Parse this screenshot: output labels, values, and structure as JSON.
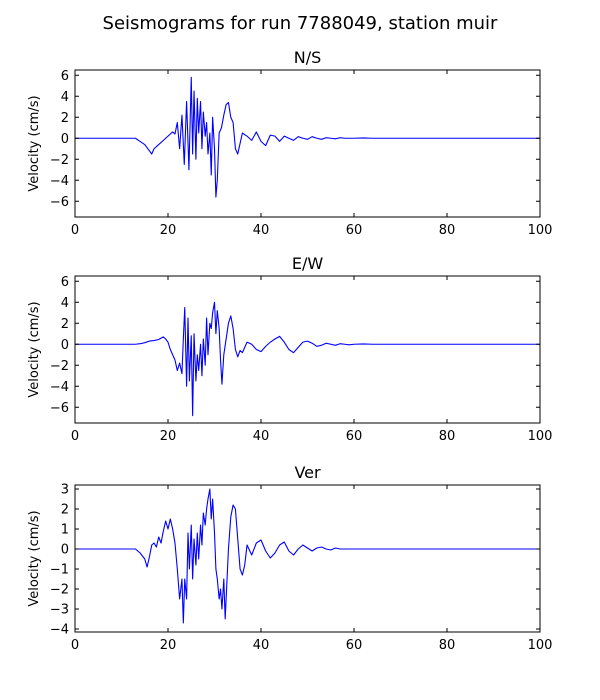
{
  "figure": {
    "title": "Seismograms for run 7788049, station muir",
    "line_color": "#0000ff"
  },
  "chart_data": [
    {
      "type": "line",
      "title": "N/S",
      "xlabel": "",
      "ylabel": "Velocity (cm/s)",
      "xlim": [
        0,
        100
      ],
      "ylim": [
        -7.5,
        6.5
      ],
      "xticks": [
        0,
        20,
        40,
        60,
        80,
        100
      ],
      "yticks": [
        -6,
        -4,
        -2,
        0,
        2,
        4,
        6
      ],
      "series": [
        {
          "x": [
            0,
            13,
            14,
            15,
            16,
            16.5,
            17,
            18,
            19,
            20,
            21,
            21.5,
            22,
            22.5,
            23,
            23.5,
            24,
            24.5,
            25,
            25.3,
            25.6,
            26,
            26.3,
            26.6,
            27,
            27.3,
            27.6,
            28,
            28.3,
            28.6,
            29,
            29.3,
            29.6,
            30,
            30.3,
            30.6,
            31,
            31.5,
            32,
            32.5,
            33,
            33.5,
            34,
            34.5,
            35,
            35.5,
            36,
            37,
            38,
            39,
            40,
            41,
            42,
            43,
            44,
            45,
            46,
            47,
            48,
            49,
            50,
            51,
            52,
            53,
            54,
            55,
            56,
            57,
            58,
            60,
            62,
            64,
            66,
            68,
            70,
            100
          ],
          "y": [
            0,
            0,
            -0.3,
            -0.6,
            -1.2,
            -1.5,
            -1.0,
            -0.6,
            -0.2,
            0.2,
            0.6,
            0.4,
            1.5,
            -1.0,
            2.2,
            -2.5,
            3.5,
            -3.0,
            5.8,
            -1.5,
            4.5,
            -2.0,
            3.8,
            0.5,
            3.5,
            -1.0,
            2.5,
            0.2,
            1.5,
            -1.5,
            0.5,
            -3.5,
            2.0,
            -1.0,
            -5.6,
            -4.0,
            0.5,
            1.0,
            2.2,
            3.2,
            3.4,
            2.0,
            1.5,
            -1.0,
            -1.5,
            -0.5,
            0.5,
            0.2,
            -0.2,
            0.6,
            -0.3,
            -0.7,
            0.3,
            0.2,
            -0.3,
            0.2,
            0.0,
            -0.2,
            0.15,
            0.0,
            -0.1,
            0.15,
            0.0,
            -0.1,
            0.05,
            0.0,
            -0.05,
            0.05,
            0.0,
            0.0,
            0.03,
            0.0,
            0.0,
            0.0,
            0.0,
            0.0
          ]
        }
      ]
    },
    {
      "type": "line",
      "title": "E/W",
      "xlabel": "",
      "ylabel": "Velocity (cm/s)",
      "xlim": [
        0,
        100
      ],
      "ylim": [
        -7.5,
        6.5
      ],
      "xticks": [
        0,
        20,
        40,
        60,
        80,
        100
      ],
      "yticks": [
        -6,
        -4,
        -2,
        0,
        2,
        4,
        6
      ],
      "series": [
        {
          "x": [
            0,
            13,
            14,
            15,
            16,
            17,
            18,
            19,
            19.5,
            20,
            20.5,
            21,
            21.5,
            22,
            22.5,
            23,
            23.3,
            23.6,
            24,
            24.3,
            24.6,
            25,
            25.3,
            25.6,
            26,
            26.3,
            26.6,
            27,
            27.3,
            27.6,
            28,
            28.3,
            28.6,
            29,
            29.3,
            29.6,
            30,
            30.3,
            30.6,
            31,
            31.3,
            31.6,
            32,
            32.5,
            33,
            33.5,
            34,
            34.5,
            35,
            35.5,
            36,
            37,
            38,
            39,
            40,
            41,
            42,
            43,
            44,
            45,
            46,
            47,
            48,
            49,
            50,
            51,
            52,
            53,
            54,
            55,
            56,
            57,
            58,
            59,
            60,
            62,
            64,
            66,
            68,
            70,
            100
          ],
          "y": [
            0,
            0,
            0.05,
            0.15,
            0.3,
            0.35,
            0.45,
            0.7,
            0.5,
            0.2,
            -0.5,
            -1.0,
            -1.5,
            -2.5,
            -1.8,
            -2.8,
            0.5,
            3.5,
            -4.0,
            2.5,
            -3.5,
            0.8,
            -6.8,
            1.0,
            -3.5,
            -1.0,
            -2.5,
            0.0,
            -3.0,
            0.5,
            -2.0,
            2.5,
            -1.0,
            2.0,
            1.5,
            3.0,
            4.0,
            1.0,
            3.2,
            1.5,
            -1.5,
            -3.8,
            -1.0,
            0.5,
            2.0,
            2.7,
            1.5,
            -0.5,
            -1.2,
            -0.6,
            -0.8,
            0.2,
            0.0,
            -0.5,
            -0.7,
            -0.2,
            0.2,
            0.5,
            0.75,
            0.2,
            -0.5,
            -0.8,
            -0.3,
            0.2,
            0.3,
            0.1,
            -0.2,
            -0.1,
            0.1,
            0.0,
            -0.1,
            0.05,
            0.0,
            -0.05,
            0.0,
            0.03,
            0.0,
            0.0,
            0.0,
            0.0,
            0.0
          ]
        }
      ]
    },
    {
      "type": "line",
      "title": "Ver",
      "xlabel": "",
      "ylabel": "Velocity (cm/s)",
      "xlim": [
        0,
        100
      ],
      "ylim": [
        -4.15,
        3.2
      ],
      "xticks": [
        0,
        20,
        40,
        60,
        80,
        100
      ],
      "yticks": [
        -4,
        -3,
        -2,
        -1,
        0,
        1,
        2,
        3
      ],
      "series": [
        {
          "x": [
            0,
            13,
            14,
            15,
            15.5,
            16,
            16.5,
            17,
            17.5,
            18,
            18.5,
            19,
            19.5,
            20,
            20.5,
            21,
            21.5,
            22,
            22.5,
            23,
            23.3,
            23.6,
            24,
            24.3,
            24.6,
            25,
            25.3,
            25.6,
            26,
            26.3,
            26.6,
            27,
            27.3,
            27.6,
            28,
            28.3,
            28.6,
            29,
            29.3,
            29.6,
            30,
            30.3,
            30.6,
            31,
            31.3,
            31.6,
            32,
            32.3,
            32.6,
            33,
            33.5,
            34,
            34.5,
            35,
            35.5,
            36,
            36.5,
            37,
            38,
            39,
            40,
            41,
            42,
            43,
            44,
            45,
            46,
            47,
            48,
            49,
            50,
            51,
            52,
            53,
            54,
            55,
            56,
            57,
            58,
            59,
            60,
            62,
            64,
            66,
            68,
            70,
            100
          ],
          "y": [
            0,
            0,
            -0.2,
            -0.5,
            -0.9,
            -0.4,
            0.2,
            0.3,
            0.1,
            0.6,
            0.3,
            0.9,
            1.4,
            1.0,
            1.5,
            1.0,
            0.3,
            -1.0,
            -2.5,
            -1.5,
            -3.7,
            -1.5,
            -2.5,
            0.8,
            -1.0,
            1.2,
            -1.5,
            0.5,
            -0.8,
            0.8,
            -0.5,
            1.2,
            0.2,
            1.8,
            1.2,
            2.0,
            2.5,
            3.0,
            1.5,
            2.5,
            0.8,
            -1.0,
            -1.5,
            -2.5,
            -2.0,
            -3.0,
            -1.5,
            -3.5,
            -2.0,
            0.0,
            1.6,
            2.2,
            2.0,
            0.5,
            -1.0,
            -1.3,
            -0.8,
            0.2,
            -0.3,
            0.3,
            0.45,
            -0.1,
            -0.45,
            -0.2,
            0.2,
            0.35,
            -0.1,
            -0.3,
            0.0,
            0.2,
            0.05,
            -0.1,
            0.05,
            0.1,
            0.0,
            -0.05,
            0.05,
            0.0,
            0.0,
            0.0,
            0.0,
            0.0,
            0.0,
            0.0,
            0.0,
            0.0,
            0.0
          ]
        }
      ]
    }
  ]
}
